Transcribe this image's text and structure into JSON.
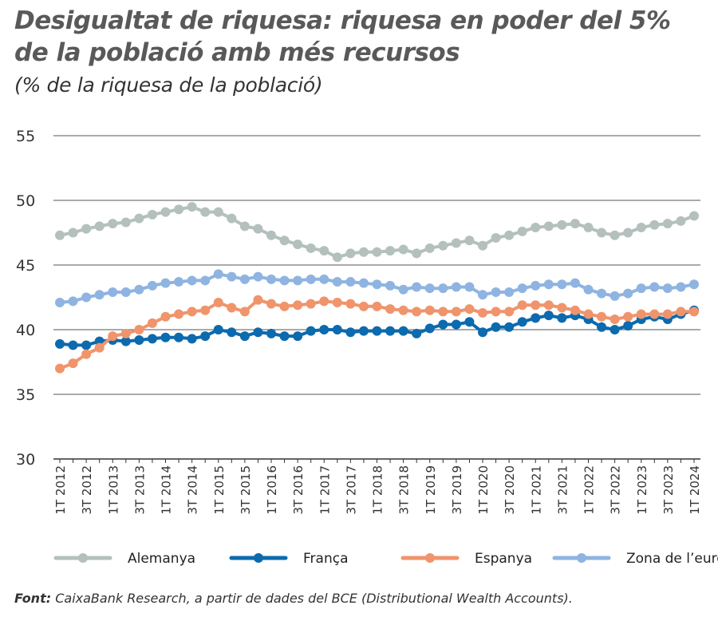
{
  "title_line1": "Desigualtat de riquesa: riquesa en poder del 5%",
  "title_line2": "de la població amb més recursos",
  "subtitle": "(% de la riquesa de la població)",
  "source_label": "Font:",
  "source_text": "CaixaBank Research, a partir de dades del BCE (Distributional Wealth Accounts).",
  "chart_data": {
    "type": "line",
    "title": "Desigualtat de riquesa: riquesa en poder del 5% de la població amb més recursos",
    "subtitle": "(% de la riquesa de la població)",
    "ylim": [
      30,
      55
    ],
    "yticks": [
      "30",
      "35",
      "40",
      "45",
      "50",
      "55"
    ],
    "grid": "horizontal",
    "legend": "bottom",
    "x_tick_labels": [
      "1T 2012",
      "3T 2012",
      "1T 2013",
      "3T 2013",
      "1T 2014",
      "3T 2014",
      "1T 2015",
      "3T 2015",
      "1T 2016",
      "3T 2016",
      "1T 2017",
      "3T 2017",
      "1T 2018",
      "3T 2018",
      "1T 2019",
      "3T 2019",
      "1T 2020",
      "3T 2020",
      "1T 2021",
      "3T 2021",
      "1T 2022",
      "3T 2022",
      "1T 2023",
      "3T 2023",
      "1T 2024"
    ],
    "x_start": "1T 2012",
    "x_frequency": "quarterly",
    "series": [
      {
        "name": "Alemanya",
        "color": "#b4c0be",
        "values": [
          47.3,
          47.5,
          47.8,
          48.0,
          48.2,
          48.3,
          48.6,
          48.9,
          49.1,
          49.3,
          49.5,
          49.1,
          49.1,
          48.6,
          48.0,
          47.8,
          47.3,
          46.9,
          46.6,
          46.3,
          46.1,
          45.6,
          45.9,
          46.0,
          46.0,
          46.1,
          46.2,
          45.9,
          46.3,
          46.5,
          46.7,
          46.9,
          46.5,
          47.1,
          47.3,
          47.6,
          47.9,
          48.0,
          48.1,
          48.2,
          47.9,
          47.5,
          47.3,
          47.5,
          47.9,
          48.1,
          48.2,
          48.4,
          48.8
        ]
      },
      {
        "name": "França",
        "color": "#0c6aae",
        "values": [
          38.9,
          38.8,
          38.8,
          39.1,
          39.2,
          39.1,
          39.2,
          39.3,
          39.4,
          39.4,
          39.3,
          39.5,
          40.0,
          39.8,
          39.5,
          39.8,
          39.7,
          39.5,
          39.5,
          39.9,
          40.0,
          40.0,
          39.8,
          39.9,
          39.9,
          39.9,
          39.9,
          39.7,
          40.1,
          40.4,
          40.4,
          40.6,
          39.8,
          40.2,
          40.2,
          40.6,
          40.9,
          41.1,
          40.9,
          41.1,
          40.8,
          40.2,
          40.0,
          40.3,
          40.8,
          41.0,
          40.8,
          41.2,
          41.5
        ]
      },
      {
        "name": "Espanya",
        "color": "#f0946c",
        "values": [
          37.0,
          37.4,
          38.1,
          38.6,
          39.5,
          39.7,
          40.0,
          40.5,
          41.0,
          41.2,
          41.4,
          41.5,
          42.1,
          41.7,
          41.4,
          42.3,
          42.0,
          41.8,
          41.9,
          42.0,
          42.2,
          42.1,
          42.0,
          41.8,
          41.8,
          41.6,
          41.5,
          41.4,
          41.5,
          41.4,
          41.4,
          41.6,
          41.3,
          41.4,
          41.4,
          41.9,
          41.9,
          41.9,
          41.7,
          41.5,
          41.2,
          41.0,
          40.8,
          41.0,
          41.2,
          41.2,
          41.2,
          41.4,
          41.4
        ]
      },
      {
        "name": "Zona de l’euro",
        "color": "#8fb4e1",
        "values": [
          42.1,
          42.2,
          42.5,
          42.7,
          42.9,
          42.9,
          43.1,
          43.4,
          43.6,
          43.7,
          43.8,
          43.8,
          44.3,
          44.1,
          43.9,
          44.1,
          43.9,
          43.8,
          43.8,
          43.9,
          43.9,
          43.7,
          43.7,
          43.6,
          43.5,
          43.4,
          43.1,
          43.3,
          43.2,
          43.2,
          43.3,
          43.3,
          42.7,
          42.9,
          42.9,
          43.2,
          43.4,
          43.5,
          43.5,
          43.6,
          43.1,
          42.8,
          42.6,
          42.8,
          43.2,
          43.3,
          43.2,
          43.3,
          43.5
        ]
      }
    ]
  }
}
